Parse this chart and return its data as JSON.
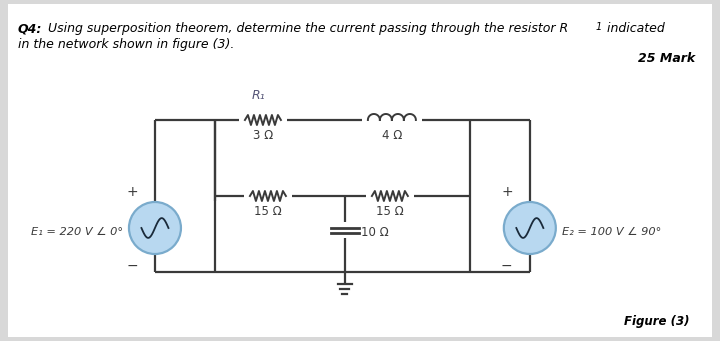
{
  "bg_color": "#d8d8d8",
  "panel_color": "#ffffff",
  "circuit_color": "#3a3a3a",
  "source_fill": "#b8d8f0",
  "source_edge": "#7aabcc",
  "R1_label": "R₁",
  "res_3": "3 Ω",
  "ind_4": "4 Ω",
  "res_15L": "15 Ω",
  "res_15R": "15 Ω",
  "cap_10": "10 Ω",
  "E1_label": "E₁ = 220 V ∠ 0°",
  "E2_label": "E₂ = 100 V ∠ 90°",
  "marks_text": "25 Mark",
  "figure_label": "Figure (3)",
  "q4_bold": "Q4:",
  "q4_rest": " Using superposition theorem, determine the current passing through the resistor R",
  "q4_sub": "1",
  "q4_end": " indicated",
  "q4_line2": "in the network shown in figure (3)."
}
